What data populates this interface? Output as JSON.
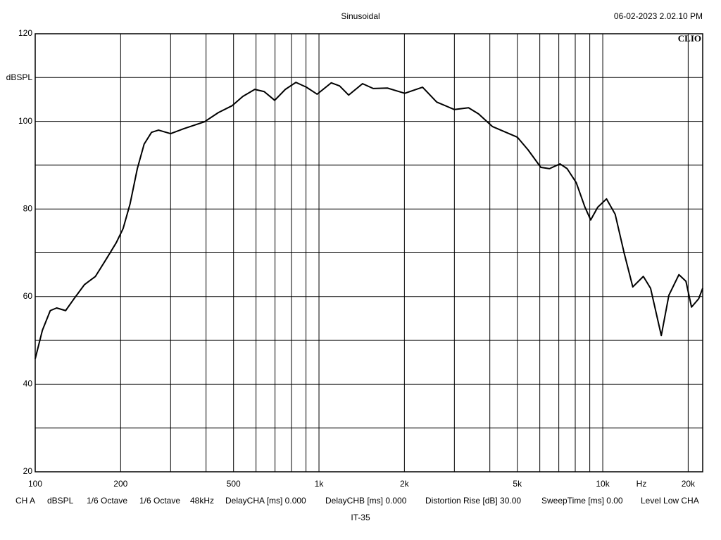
{
  "chart_data": {
    "type": "line",
    "title": "Sinusoidal",
    "timestamp": "06-02-2023 2.02.10 PM",
    "brand": "CLIO",
    "y_label": "dBSPL",
    "x_label": "Hz",
    "log_x": true,
    "color": "#000000",
    "xlim": [
      100,
      22500
    ],
    "ylim": [
      20,
      120
    ],
    "yticks": [
      20,
      40,
      60,
      80,
      100,
      120
    ],
    "y_minor_grid": [
      30,
      50,
      70,
      90,
      110
    ],
    "xticks": [
      100,
      200,
      500,
      {
        "value": 1000,
        "label": "1k"
      },
      {
        "value": 2000,
        "label": "2k"
      },
      {
        "value": 5000,
        "label": "5k"
      },
      {
        "value": 10000,
        "label": "10k"
      },
      {
        "value": 20000,
        "label": "20k"
      }
    ],
    "x_grid": [
      200,
      300,
      400,
      500,
      600,
      700,
      800,
      900,
      1000,
      2000,
      3000,
      4000,
      5000,
      6000,
      7000,
      8000,
      9000,
      10000,
      20000
    ],
    "x": [
      100,
      106,
      113,
      119,
      128,
      137,
      149,
      163,
      177,
      193,
      204,
      216,
      229,
      242,
      257,
      272,
      300,
      333,
      395,
      442,
      495,
      539,
      594,
      641,
      698,
      761,
      829,
      903,
      985,
      1105,
      1182,
      1272,
      1424,
      1553,
      1742,
      2006,
      2317,
      2600,
      3001,
      3365,
      3651,
      4090,
      4998,
      5455,
      6050,
      6490,
      7070,
      7490,
      8065,
      8655,
      9070,
      9600,
      10310,
      11060,
      11900,
      12760,
      13900,
      14740,
      16080,
      17100,
      18550,
      19640,
      20550,
      21780,
      22500
    ],
    "values": [
      45.8,
      52.3,
      56.8,
      57.4,
      56.8,
      59.5,
      62.7,
      64.6,
      68.3,
      72.3,
      75.5,
      81.2,
      89.2,
      94.8,
      97.5,
      98.0,
      97.2,
      98.3,
      99.9,
      102.0,
      103.6,
      105.7,
      107.3,
      106.8,
      104.8,
      107.3,
      108.9,
      107.8,
      106.2,
      108.8,
      108.1,
      106.0,
      108.6,
      107.5,
      107.6,
      106.4,
      107.8,
      104.4,
      102.7,
      103.1,
      101.7,
      98.8,
      96.4,
      93.5,
      89.5,
      89.2,
      90.3,
      89.2,
      86.0,
      80.4,
      77.5,
      80.4,
      82.3,
      78.8,
      69.9,
      62.2,
      64.6,
      61.9,
      51.1,
      60.3,
      65.0,
      63.5,
      57.6,
      59.5,
      61.9
    ],
    "footer_items": [
      "CH A",
      "dBSPL",
      "1/6 Octave",
      "1/6 Octave",
      "48kHz",
      "DelayCHA [ms] 0.000",
      "DelayCHB [ms] 0.000",
      "Distortion Rise [dB] 30.00",
      "SweepTime [ms] 0.00",
      "Level Low CHA"
    ],
    "caption": "IT-35"
  }
}
